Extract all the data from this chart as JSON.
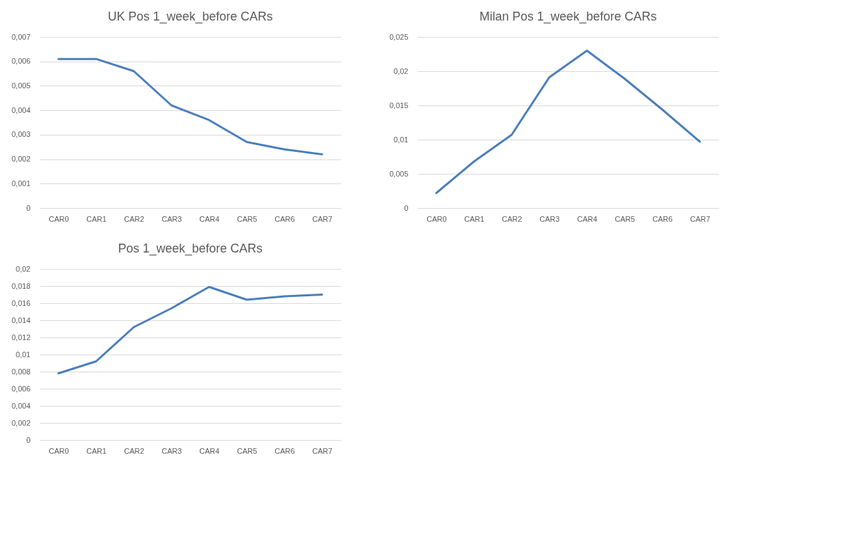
{
  "chart_data": [
    {
      "type": "line",
      "title": "UK Pos 1_week_before CARs",
      "categories": [
        "CAR0",
        "CAR1",
        "CAR2",
        "CAR3",
        "CAR4",
        "CAR5",
        "CAR6",
        "CAR7"
      ],
      "series": [
        {
          "color": "#4a7ebb",
          "values": [
            0.0061,
            0.0061,
            0.0056,
            0.0042,
            0.0036,
            0.0027,
            0.0024,
            0.0022
          ]
        }
      ],
      "ylim": [
        0,
        0.007
      ],
      "yticks": [
        {
          "value": 0,
          "label": "0"
        },
        {
          "value": 0.001,
          "label": "0,001"
        },
        {
          "value": 0.002,
          "label": "0,002"
        },
        {
          "value": 0.003,
          "label": "0,003"
        },
        {
          "value": 0.004,
          "label": "0,004"
        },
        {
          "value": 0.005,
          "label": "0,005"
        },
        {
          "value": 0.006,
          "label": "0,006"
        },
        {
          "value": 0.007,
          "label": "0,007"
        }
      ],
      "grid": "y"
    },
    {
      "type": "line",
      "title": "Milan Pos 1_week_before CARs",
      "categories": [
        "CAR0",
        "CAR1",
        "CAR2",
        "CAR3",
        "CAR4",
        "CAR5",
        "CAR6",
        "CAR7"
      ],
      "series": [
        {
          "color": "#4a7ebb",
          "values": [
            0.0022,
            0.0068,
            0.0107,
            0.0191,
            0.023,
            0.0189,
            0.0144,
            0.0097
          ]
        }
      ],
      "ylim": [
        0,
        0.025
      ],
      "yticks": [
        {
          "value": 0,
          "label": "0"
        },
        {
          "value": 0.005,
          "label": "0,005"
        },
        {
          "value": 0.01,
          "label": "0,01"
        },
        {
          "value": 0.015,
          "label": "0,015"
        },
        {
          "value": 0.02,
          "label": "0,02"
        },
        {
          "value": 0.025,
          "label": "0,025"
        }
      ],
      "grid": "y"
    },
    {
      "type": "line",
      "title": "Pos 1_week_before CARs",
      "categories": [
        "CAR0",
        "CAR1",
        "CAR2",
        "CAR3",
        "CAR4",
        "CAR5",
        "CAR6",
        "CAR7"
      ],
      "series": [
        {
          "color": "#4a7ebb",
          "values": [
            0.0078,
            0.0092,
            0.0132,
            0.0154,
            0.0179,
            0.0164,
            0.0168,
            0.017
          ]
        }
      ],
      "ylim": [
        0,
        0.02
      ],
      "yticks": [
        {
          "value": 0,
          "label": "0"
        },
        {
          "value": 0.002,
          "label": "0,002"
        },
        {
          "value": 0.004,
          "label": "0,004"
        },
        {
          "value": 0.006,
          "label": "0,006"
        },
        {
          "value": 0.008,
          "label": "0,008"
        },
        {
          "value": 0.01,
          "label": "0,01"
        },
        {
          "value": 0.012,
          "label": "0,012"
        },
        {
          "value": 0.014,
          "label": "0,014"
        },
        {
          "value": 0.016,
          "label": "0,016"
        },
        {
          "value": 0.018,
          "label": "0,018"
        },
        {
          "value": 0.02,
          "label": "0,02"
        }
      ],
      "grid": "y"
    }
  ]
}
